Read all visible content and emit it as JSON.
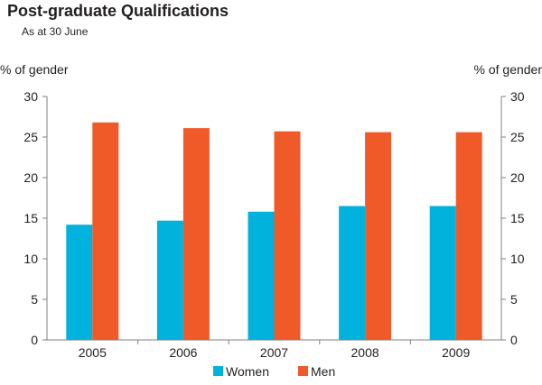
{
  "chart_data": {
    "type": "bar",
    "title": "Post-graduate Qualifications",
    "subtitle": "As at 30 June",
    "ylabel_left": "% of gender",
    "ylabel_right": "% of gender",
    "categories": [
      "2005",
      "2006",
      "2007",
      "2008",
      "2009"
    ],
    "series": [
      {
        "name": "Women",
        "color": "#00b2dc",
        "values": [
          14.2,
          14.7,
          15.8,
          16.5,
          16.5
        ]
      },
      {
        "name": "Men",
        "color": "#f05a28",
        "values": [
          26.8,
          26.1,
          25.7,
          25.6,
          25.6
        ]
      }
    ],
    "ylim": [
      0,
      30
    ],
    "yticks": [
      0,
      5,
      10,
      15,
      20,
      25,
      30
    ],
    "grid": false,
    "legend_position": "bottom"
  }
}
